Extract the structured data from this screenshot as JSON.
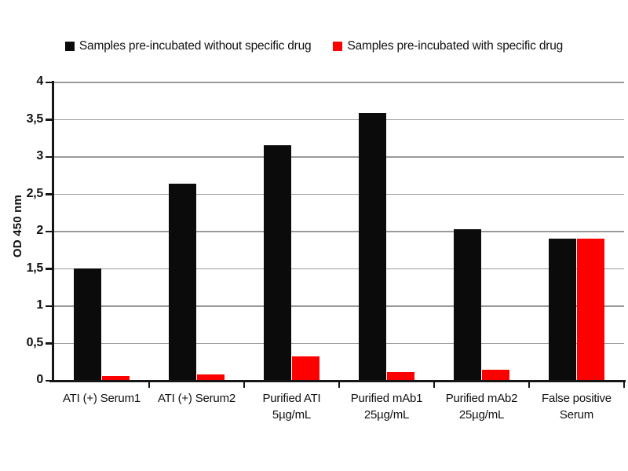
{
  "figure": {
    "background": "#ffffff",
    "text_color": "#111111"
  },
  "chart_data": {
    "type": "bar",
    "title": "",
    "xlabel": "",
    "ylabel": "OD 450 nm",
    "ylim": [
      0,
      4
    ],
    "ytick_step": 0.5,
    "ytick_labels": [
      "0",
      "0,5",
      "1",
      "1,5",
      "2",
      "2,5",
      "3",
      "3,5",
      "4"
    ],
    "decimal_separator": ",",
    "grid": "horizontal",
    "gridline_color": "#9a9a9a",
    "axis_color": "#161616",
    "legend_position": "top",
    "legend_marker": "square-icon",
    "categories": [
      "ATI (+) Serum1",
      "ATI (+) Serum2",
      "Purified ATI\n5µg/mL",
      "Purified mAb1\n25µg/mL",
      "Purified mAb2\n25µg/mL",
      "False positive\nSerum"
    ],
    "series": [
      {
        "name": "Samples pre-incubated without specific drug",
        "color": "#0b0b0b",
        "values": [
          1.51,
          2.64,
          3.16,
          3.59,
          2.03,
          1.91
        ]
      },
      {
        "name": "Samples pre-incubated with specific drug",
        "color": "#fe0000",
        "values": [
          0.06,
          0.08,
          0.33,
          0.12,
          0.15,
          1.91
        ]
      }
    ]
  }
}
